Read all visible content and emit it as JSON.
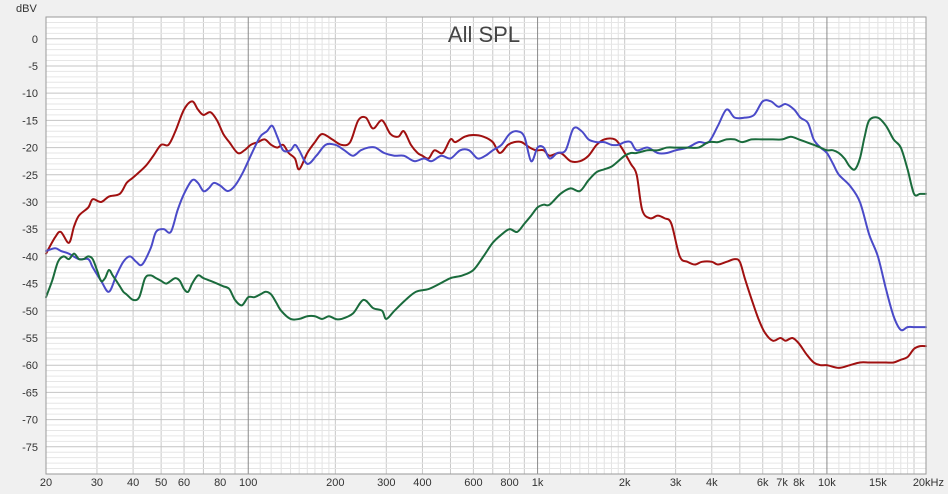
{
  "chart_data": {
    "type": "line",
    "title": "All SPL",
    "ylabel": "dBV",
    "xlabel": "",
    "x_scale": "log",
    "xlim": [
      20,
      22000
    ],
    "ylim": [
      -80,
      4
    ],
    "grid": true,
    "y_ticks": [
      {
        "value": 0,
        "label": "0"
      },
      {
        "value": -5,
        "label": "-5"
      },
      {
        "value": -10,
        "label": "-10"
      },
      {
        "value": -15,
        "label": "-15"
      },
      {
        "value": -20,
        "label": "-20"
      },
      {
        "value": -25,
        "label": "-25"
      },
      {
        "value": -30,
        "label": "-30"
      },
      {
        "value": -35,
        "label": "-35"
      },
      {
        "value": -40,
        "label": "-40"
      },
      {
        "value": -45,
        "label": "-45"
      },
      {
        "value": -50,
        "label": "-50"
      },
      {
        "value": -55,
        "label": "-55"
      },
      {
        "value": -60,
        "label": "-60"
      },
      {
        "value": -65,
        "label": "-65"
      },
      {
        "value": -70,
        "label": "-70"
      },
      {
        "value": -75,
        "label": "-75"
      }
    ],
    "x_ticks": [
      {
        "value": 20,
        "label": "20"
      },
      {
        "value": 30,
        "label": "30"
      },
      {
        "value": 40,
        "label": "40"
      },
      {
        "value": 50,
        "label": "50"
      },
      {
        "value": 60,
        "label": "60"
      },
      {
        "value": 80,
        "label": "80"
      },
      {
        "value": 100,
        "label": "100"
      },
      {
        "value": 200,
        "label": "200"
      },
      {
        "value": 300,
        "label": "300"
      },
      {
        "value": 400,
        "label": "400"
      },
      {
        "value": 600,
        "label": "600"
      },
      {
        "value": 800,
        "label": "800"
      },
      {
        "value": 1000,
        "label": "1k"
      },
      {
        "value": 2000,
        "label": "2k"
      },
      {
        "value": 3000,
        "label": "3k"
      },
      {
        "value": 4000,
        "label": "4k"
      },
      {
        "value": 6000,
        "label": "6k"
      },
      {
        "value": 7000,
        "label": "7k"
      },
      {
        "value": 8000,
        "label": "8k"
      },
      {
        "value": 10000,
        "label": "10k"
      },
      {
        "value": 15000,
        "label": "15k"
      },
      {
        "value": 20000,
        "label": "20kHz"
      }
    ],
    "series": [
      {
        "color": "#a01010",
        "x": [
          20,
          21.5,
          22.5,
          24,
          25,
          26,
          28,
          29,
          31,
          33,
          36,
          38,
          40,
          44,
          47,
          50,
          53,
          56,
          60,
          64,
          67,
          70,
          74,
          78,
          82,
          86,
          92,
          97,
          102,
          108,
          114,
          120,
          126,
          132,
          138,
          145,
          150,
          160,
          170,
          180,
          195,
          210,
          225,
          240,
          255,
          270,
          290,
          310,
          330,
          345,
          365,
          385,
          400,
          420,
          440,
          470,
          500,
          520,
          560,
          600,
          650,
          700,
          740,
          790,
          830,
          880,
          940,
          990,
          1050,
          1100,
          1200,
          1300,
          1400,
          1500,
          1600,
          1700,
          1850,
          1950,
          2100,
          2200,
          2300,
          2450,
          2600,
          2750,
          2900,
          3100,
          3300,
          3500,
          3700,
          4000,
          4200,
          4500,
          4800,
          5000,
          5200,
          5500,
          5800,
          6100,
          6500,
          6900,
          7200,
          7600,
          8000,
          8500,
          9000,
          9500,
          10000,
          11000,
          12000,
          13000,
          14000,
          15000,
          16000,
          17000,
          18000,
          19000,
          20000,
          21000,
          22000
        ],
        "values": [
          -39.5,
          -36.5,
          -35.5,
          -37.5,
          -34.5,
          -32.5,
          -31.0,
          -29.5,
          -30.0,
          -29.0,
          -28.5,
          -26.5,
          -25.5,
          -23.5,
          -21.5,
          -19.5,
          -19.5,
          -17.0,
          -13.0,
          -11.5,
          -13.0,
          -14.0,
          -13.5,
          -15.0,
          -17.5,
          -19.0,
          -21.0,
          -20.5,
          -19.5,
          -19.0,
          -18.5,
          -19.5,
          -20.0,
          -19.5,
          -21.0,
          -22.0,
          -24.0,
          -21.0,
          -19.0,
          -17.5,
          -18.5,
          -19.5,
          -19.0,
          -15.0,
          -14.5,
          -16.5,
          -15.0,
          -17.5,
          -18.0,
          -17.0,
          -19.5,
          -21.0,
          -21.5,
          -22.0,
          -20.5,
          -21.0,
          -18.5,
          -19.0,
          -18.0,
          -17.7,
          -18.0,
          -19.0,
          -21.0,
          -19.5,
          -19.0,
          -19.0,
          -20.0,
          -20.5,
          -20.5,
          -21.5,
          -21.0,
          -22.5,
          -22.5,
          -21.5,
          -19.5,
          -18.5,
          -18.5,
          -20.0,
          -23.0,
          -25.0,
          -31.5,
          -33.0,
          -32.5,
          -33.0,
          -34.0,
          -40.0,
          -41.0,
          -41.5,
          -41.0,
          -41.0,
          -41.5,
          -41.0,
          -40.5,
          -41.0,
          -44.0,
          -48.0,
          -51.5,
          -54.0,
          -55.5,
          -55.0,
          -55.5,
          -55.0,
          -56.0,
          -58.0,
          -59.5,
          -60.0,
          -60.0,
          -60.5,
          -60.0,
          -59.5,
          -59.5,
          -59.5,
          -59.5,
          -59.5,
          -59.0,
          -58.5,
          -57.0,
          -56.5,
          -56.5
        ]
      },
      {
        "color": "#4a4ac8",
        "x": [
          20,
          21.5,
          22.5,
          24,
          26,
          28,
          29,
          31,
          33,
          35,
          37,
          39,
          41,
          43,
          46,
          48,
          51,
          54,
          57,
          60,
          64,
          67,
          70,
          73,
          76,
          80,
          85,
          90,
          96,
          103,
          110,
          116,
          121,
          126,
          132,
          140,
          145,
          150,
          160,
          172,
          185,
          200,
          215,
          230,
          245,
          260,
          275,
          295,
          320,
          345,
          375,
          405,
          430,
          465,
          500,
          540,
          580,
          620,
          660,
          700,
          750,
          800,
          850,
          900,
          950,
          1000,
          1050,
          1100,
          1170,
          1250,
          1330,
          1420,
          1500,
          1600,
          1700,
          1800,
          1900,
          2000,
          2100,
          2200,
          2400,
          2600,
          2800,
          3000,
          3300,
          3600,
          3900,
          4200,
          4500,
          4800,
          5200,
          5600,
          6000,
          6400,
          6800,
          7200,
          7700,
          8100,
          8600,
          9000,
          9500,
          10000,
          10500,
          11000,
          12000,
          13000,
          14000,
          15000,
          16000,
          17000,
          18000,
          19000,
          20000,
          21000,
          22000
        ],
        "values": [
          -39.0,
          -38.5,
          -39.0,
          -39.5,
          -40.5,
          -40.5,
          -42.0,
          -44.5,
          -46.5,
          -43.5,
          -41.0,
          -40.0,
          -41.0,
          -41.5,
          -38.5,
          -35.5,
          -35.0,
          -35.5,
          -31.5,
          -28.5,
          -26.0,
          -26.5,
          -28.0,
          -27.5,
          -26.5,
          -27.0,
          -28.0,
          -27.0,
          -24.5,
          -21.0,
          -18.0,
          -17.0,
          -16.0,
          -18.0,
          -20.5,
          -20.5,
          -19.5,
          -20.5,
          -23.0,
          -21.5,
          -19.5,
          -19.5,
          -20.5,
          -21.5,
          -20.5,
          -20.0,
          -20.0,
          -21.0,
          -21.5,
          -21.5,
          -22.5,
          -22.0,
          -22.5,
          -21.5,
          -22.0,
          -20.5,
          -20.5,
          -22.0,
          -21.5,
          -20.5,
          -19.5,
          -17.5,
          -17.0,
          -18.0,
          -22.5,
          -20.0,
          -20.0,
          -22.0,
          -21.0,
          -20.5,
          -16.5,
          -17.0,
          -18.5,
          -19.0,
          -19.0,
          -19.5,
          -19.5,
          -19.0,
          -19.0,
          -20.5,
          -20.0,
          -21.0,
          -21.0,
          -20.5,
          -20.0,
          -19.0,
          -19.0,
          -16.0,
          -13.0,
          -14.5,
          -14.5,
          -14.0,
          -11.5,
          -11.5,
          -12.5,
          -12.0,
          -13.0,
          -14.5,
          -15.5,
          -18.5,
          -20.0,
          -21.0,
          -23.0,
          -25.0,
          -27.0,
          -30.0,
          -36.0,
          -40.0,
          -46.0,
          -51.0,
          -53.5,
          -53.0,
          -53.0,
          -53.0,
          -53.0
        ]
      },
      {
        "color": "#1a6b3c",
        "x": [
          20,
          21,
          22,
          23,
          24,
          25,
          26,
          27,
          28,
          29,
          30,
          31,
          32,
          33,
          34,
          35,
          36,
          37,
          38,
          40,
          42,
          44,
          46,
          48,
          50,
          52,
          54,
          56,
          58,
          60,
          62,
          64,
          67,
          70,
          74,
          78,
          82,
          86,
          90,
          95,
          100,
          105,
          110,
          115,
          120,
          125,
          130,
          140,
          150,
          160,
          170,
          180,
          190,
          200,
          210,
          230,
          250,
          270,
          290,
          300,
          320,
          350,
          380,
          420,
          460,
          500,
          550,
          600,
          650,
          700,
          750,
          800,
          850,
          900,
          950,
          1000,
          1050,
          1100,
          1200,
          1300,
          1400,
          1500,
          1600,
          1700,
          1800,
          1900,
          2000,
          2100,
          2200,
          2400,
          2600,
          2800,
          3000,
          3300,
          3600,
          3900,
          4200,
          4500,
          4800,
          5100,
          5500,
          6000,
          6500,
          7000,
          7500,
          8000,
          8500,
          9000,
          9500,
          10000,
          10500,
          11000,
          11500,
          12000,
          12500,
          13000,
          13500,
          14000,
          15000,
          16000,
          17000,
          18000,
          19000,
          20000,
          21000,
          22000
        ],
        "values": [
          -47.5,
          -44.5,
          -41.0,
          -40.0,
          -40.5,
          -39.5,
          -40.5,
          -40.5,
          -40.0,
          -40.5,
          -42.5,
          -44.5,
          -44.0,
          -42.5,
          -43.5,
          -44.5,
          -45.5,
          -46.5,
          -47.0,
          -48.0,
          -47.5,
          -44.0,
          -43.5,
          -44.0,
          -44.5,
          -45.0,
          -44.5,
          -44.0,
          -44.5,
          -46.0,
          -46.5,
          -45.0,
          -43.5,
          -44.0,
          -44.5,
          -45.0,
          -45.5,
          -46.0,
          -48.0,
          -49.0,
          -47.5,
          -47.5,
          -47.0,
          -46.5,
          -47.0,
          -48.5,
          -50.0,
          -51.5,
          -51.5,
          -51.0,
          -51.0,
          -51.5,
          -51.0,
          -51.5,
          -51.5,
          -50.5,
          -48.0,
          -49.5,
          -50.0,
          -51.5,
          -50.0,
          -48.0,
          -46.5,
          -46.0,
          -45.0,
          -44.0,
          -43.5,
          -42.5,
          -40.0,
          -37.5,
          -36.0,
          -35.0,
          -35.5,
          -34.0,
          -32.5,
          -31.0,
          -30.5,
          -30.5,
          -28.5,
          -27.5,
          -28.0,
          -26.0,
          -24.5,
          -24.0,
          -23.5,
          -22.5,
          -21.5,
          -21.0,
          -21.0,
          -20.5,
          -20.5,
          -20.0,
          -20.0,
          -20.0,
          -20.0,
          -19.0,
          -19.0,
          -18.5,
          -18.5,
          -19.0,
          -18.5,
          -18.5,
          -18.5,
          -18.5,
          -18.0,
          -18.5,
          -19.0,
          -19.5,
          -20.0,
          -20.5,
          -20.5,
          -21.0,
          -22.0,
          -23.5,
          -24.0,
          -22.0,
          -18.0,
          -15.0,
          -14.5,
          -16.0,
          -18.5,
          -20.0,
          -24.0,
          -28.5,
          -28.5,
          -28.5
        ]
      }
    ]
  }
}
